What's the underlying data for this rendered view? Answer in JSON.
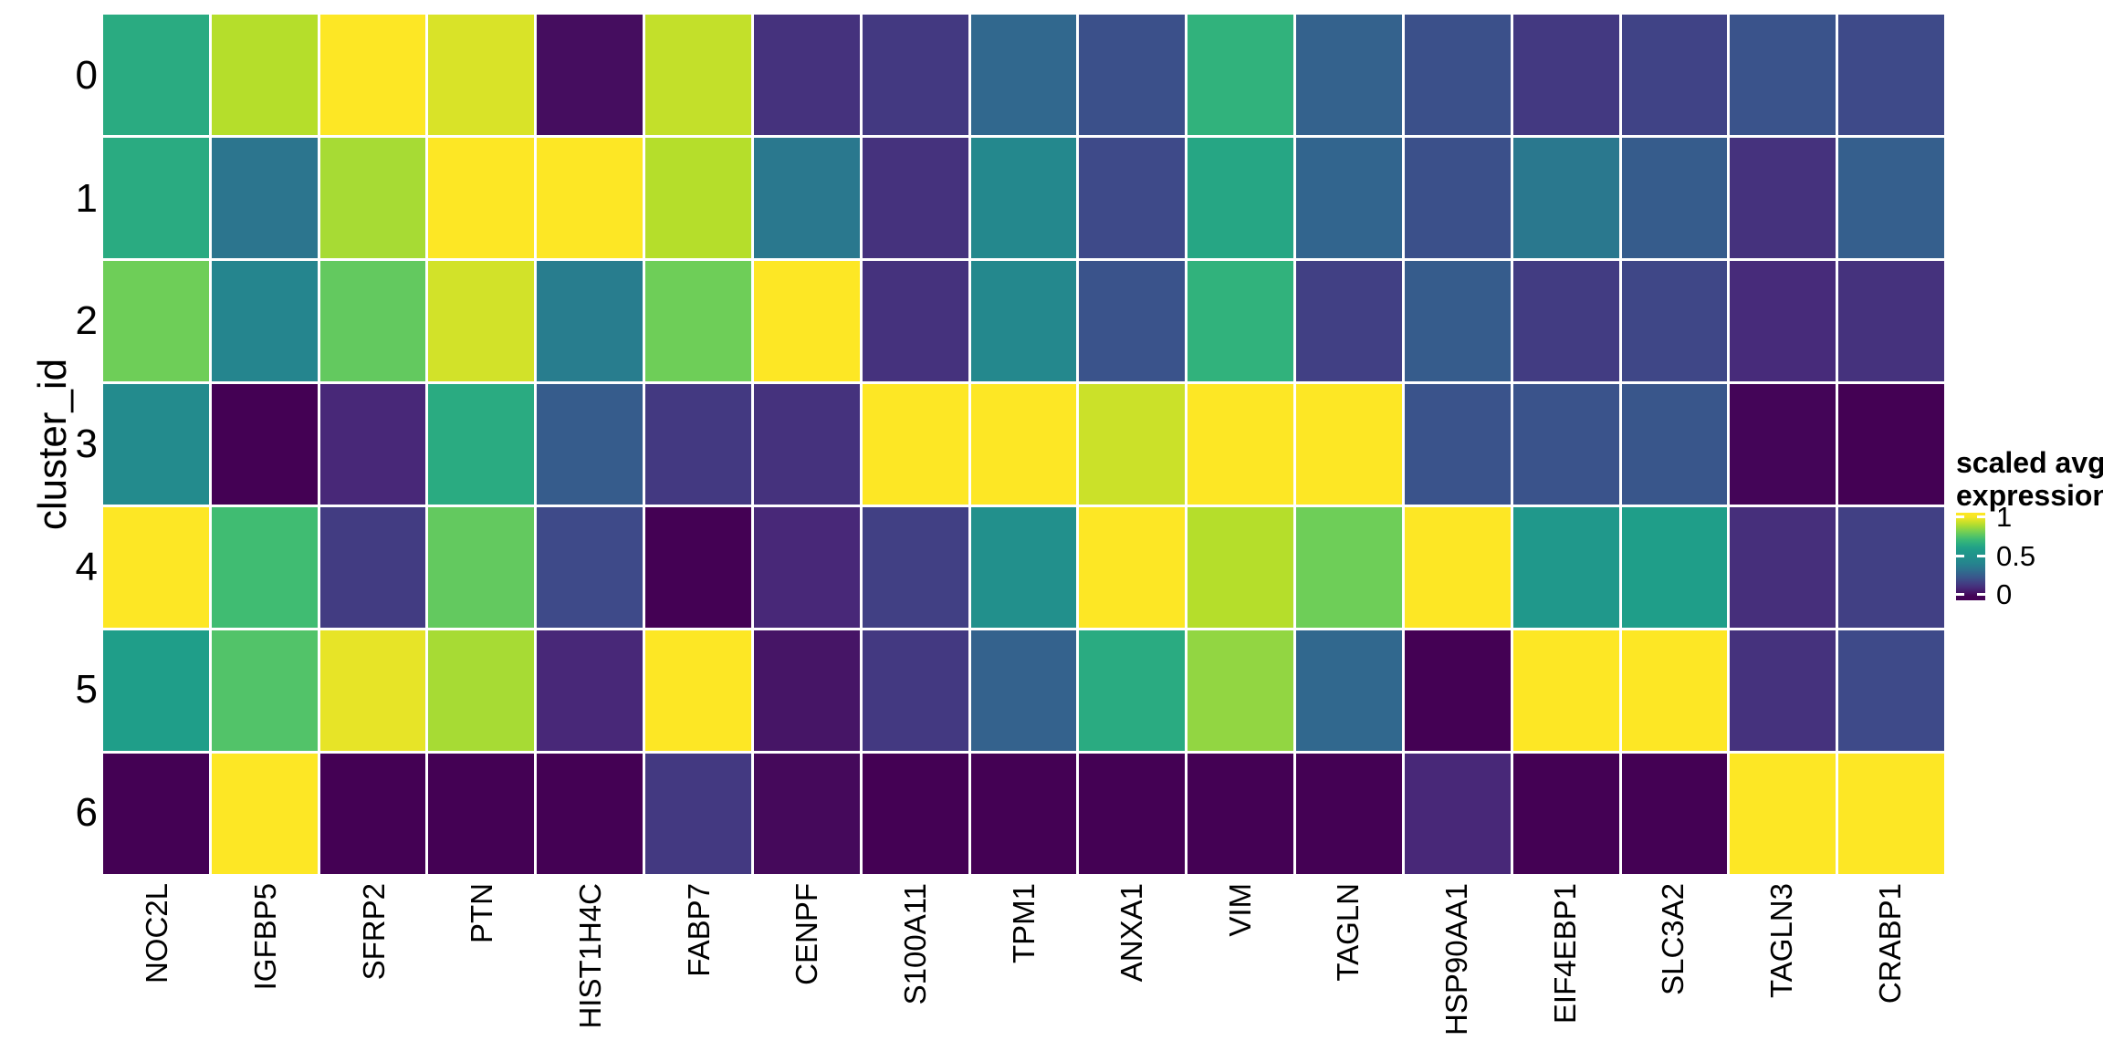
{
  "figure": {
    "background": "#ffffff"
  },
  "chart_data": {
    "type": "heatmap",
    "title": "",
    "xlabel": "",
    "ylabel": "cluster_id",
    "x_labels": [
      "NOC2L",
      "IGFBP5",
      "SFRP2",
      "PTN",
      "HIST1H4C",
      "FABP7",
      "CENPF",
      "S100A11",
      "TPM1",
      "ANXA1",
      "VIM",
      "TAGLN",
      "HSP90AA1",
      "EIF4EBP1",
      "SLC3A2",
      "TAGLN3",
      "CRABP1"
    ],
    "y_labels": [
      "0",
      "1",
      "2",
      "3",
      "4",
      "5",
      "6"
    ],
    "value_name": "scaled avg. expression",
    "value_range": [
      0,
      1
    ],
    "grid": "white gaps between tiles, no axis lines",
    "values": [
      [
        0.65,
        0.9,
        1.0,
        0.95,
        0.03,
        0.92,
        0.13,
        0.15,
        0.3,
        0.22,
        0.68,
        0.28,
        0.22,
        0.15,
        0.18,
        0.23,
        0.2
      ],
      [
        0.65,
        0.35,
        0.88,
        1.0,
        1.0,
        0.9,
        0.36,
        0.13,
        0.44,
        0.2,
        0.63,
        0.29,
        0.22,
        0.36,
        0.26,
        0.13,
        0.27
      ],
      [
        0.8,
        0.42,
        0.78,
        0.94,
        0.38,
        0.8,
        1.0,
        0.13,
        0.44,
        0.23,
        0.68,
        0.17,
        0.26,
        0.16,
        0.19,
        0.11,
        0.13
      ],
      [
        0.46,
        0.0,
        0.1,
        0.65,
        0.26,
        0.15,
        0.13,
        1.0,
        1.0,
        0.93,
        1.0,
        1.0,
        0.23,
        0.23,
        0.24,
        0.01,
        0.0
      ],
      [
        1.0,
        0.72,
        0.16,
        0.78,
        0.2,
        0.0,
        0.1,
        0.17,
        0.49,
        1.0,
        0.9,
        0.8,
        1.0,
        0.55,
        0.6,
        0.12,
        0.17
      ],
      [
        0.6,
        0.75,
        0.97,
        0.88,
        0.1,
        1.0,
        0.05,
        0.15,
        0.28,
        0.65,
        0.85,
        0.3,
        0.0,
        1.0,
        1.0,
        0.13,
        0.2
      ],
      [
        0.0,
        1.0,
        0.0,
        0.0,
        0.0,
        0.15,
        0.02,
        0.0,
        0.0,
        0.0,
        0.0,
        0.0,
        0.1,
        0.0,
        0.0,
        1.0,
        1.0
      ]
    ],
    "legend": {
      "position": "right",
      "title_line1": "scaled avg.",
      "title_line2": "expression",
      "ticks": [
        {
          "label": "1",
          "value": 1.0,
          "bar_fraction_from_top": 0.042
        },
        {
          "label": "0.5",
          "value": 0.5,
          "bar_fraction_from_top": 0.49
        },
        {
          "label": "0",
          "value": 0.0,
          "bar_fraction_from_top": 0.935
        }
      ]
    },
    "colormap": {
      "name": "viridis",
      "anchors": [
        "#440154",
        "#482878",
        "#3e4a89",
        "#31688e",
        "#26828e",
        "#21918c",
        "#1f9e89",
        "#35b779",
        "#6ece58",
        "#b5de2b",
        "#fde725"
      ]
    },
    "tile_gap_color": "#ffffff",
    "text_color": "#000000"
  }
}
